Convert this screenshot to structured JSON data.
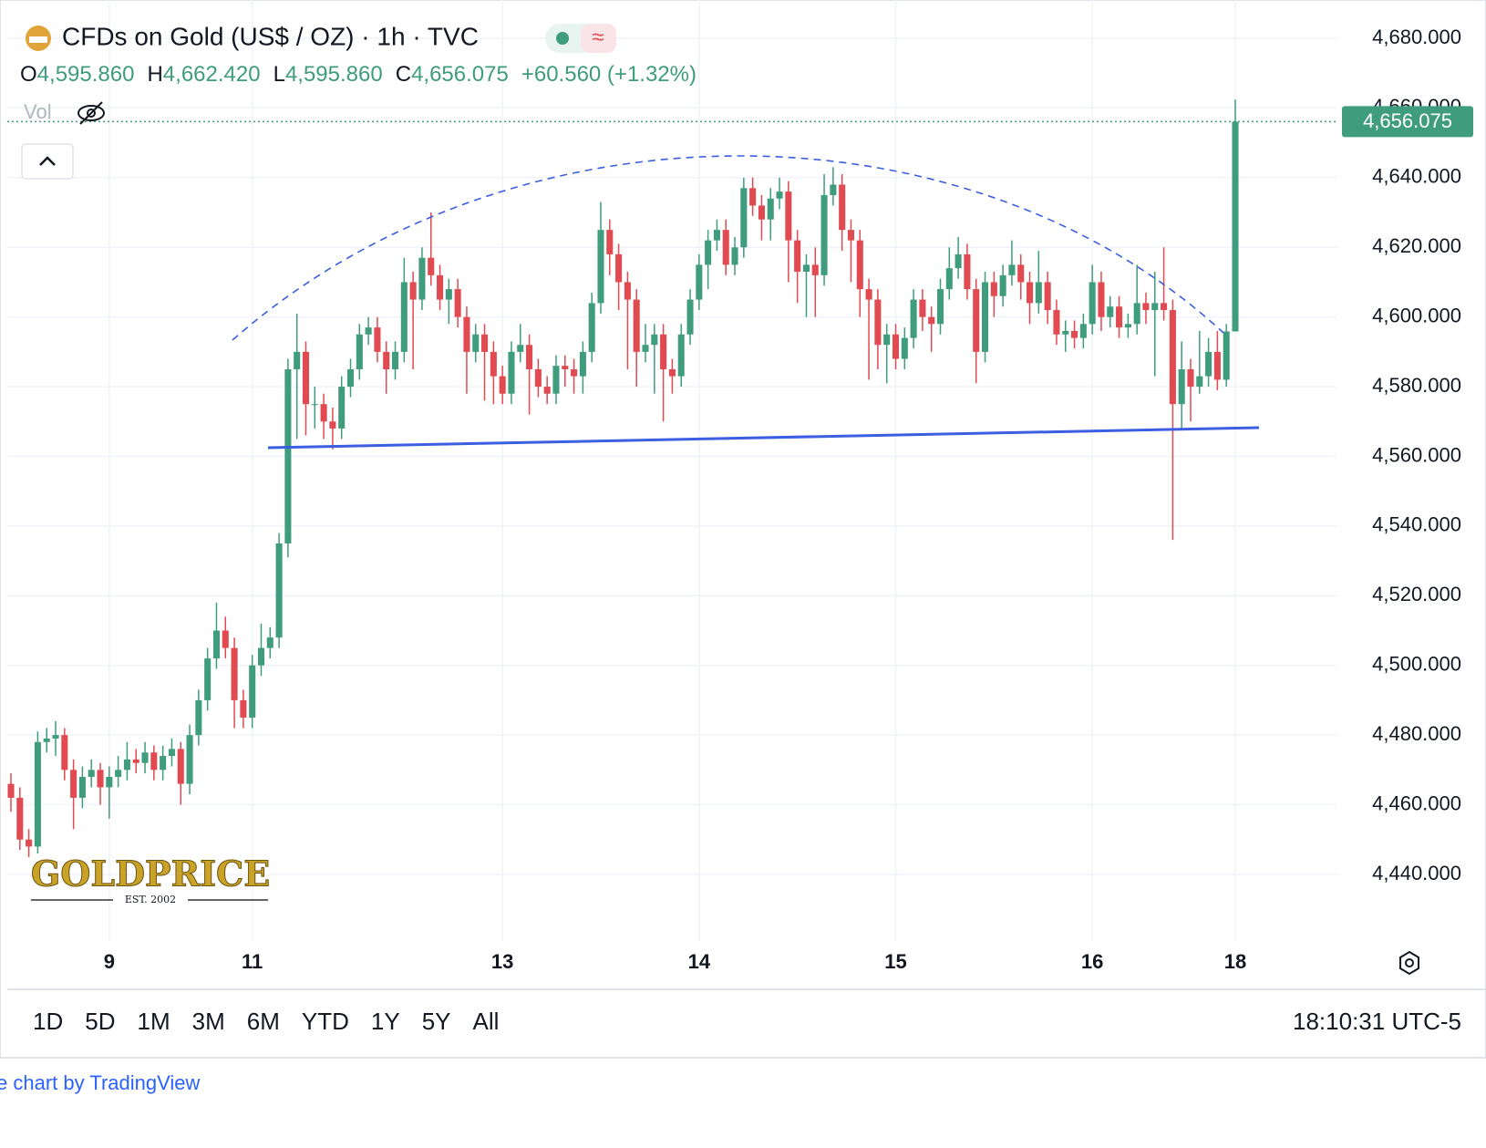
{
  "chart_data": {
    "type": "candlestick",
    "title": "CFDs on Gold (US$ / OZ) · 1h · TVC",
    "legend_values": [
      {
        "key": "O",
        "label": "4,595.860"
      },
      {
        "key": "H",
        "label": "4,662.420"
      },
      {
        "key": "L",
        "label": "4,595.860"
      },
      {
        "key": "C",
        "label": "4,656.075"
      }
    ],
    "change": "+60.560 (+1.32%)",
    "volume_label": "Vol",
    "up_color": "#3f9c7d",
    "down_color": "#e04a50",
    "categories": [
      null,
      null,
      null,
      null,
      null,
      null,
      null,
      null,
      null,
      null,
      null,
      "9",
      null,
      null,
      null,
      null,
      null,
      null,
      null,
      null,
      null,
      null,
      null,
      null,
      null,
      null,
      null,
      "11",
      null,
      null,
      null,
      null,
      null,
      null,
      null,
      null,
      null,
      null,
      null,
      null,
      null,
      null,
      null,
      null,
      null,
      null,
      null,
      null,
      null,
      null,
      null,
      null,
      null,
      null,
      null,
      "13",
      null,
      null,
      null,
      null,
      null,
      null,
      null,
      null,
      null,
      null,
      null,
      null,
      null,
      null,
      null,
      null,
      null,
      null,
      null,
      null,
      null,
      "14",
      null,
      null,
      null,
      null,
      null,
      null,
      null,
      null,
      null,
      null,
      null,
      null,
      null,
      null,
      null,
      null,
      null,
      null,
      null,
      null,
      null,
      "15",
      null,
      null,
      null,
      null,
      null,
      null,
      null,
      null,
      null,
      null,
      null,
      null,
      null,
      null,
      null,
      null,
      null,
      null,
      null,
      null,
      null,
      "16",
      null,
      null,
      null,
      null,
      null,
      null,
      null,
      null,
      null,
      null,
      null,
      null,
      null,
      null,
      null,
      "18"
    ],
    "ohlc": [
      [
        4466,
        4469,
        4458,
        4462
      ],
      [
        4462,
        4465,
        4447,
        4450
      ],
      [
        4450,
        4453,
        4445,
        4448
      ],
      [
        4448,
        4481,
        4446,
        4478
      ],
      [
        4478,
        4482,
        4475,
        4479
      ],
      [
        4479,
        4484,
        4474,
        4480
      ],
      [
        4480,
        4482,
        4467,
        4470
      ],
      [
        4470,
        4473,
        4453,
        4462
      ],
      [
        4462,
        4471,
        4459,
        4468
      ],
      [
        4468,
        4473,
        4465,
        4470
      ],
      [
        4470,
        4472,
        4460,
        4465
      ],
      [
        4465,
        4471,
        4456,
        4468
      ],
      [
        4468,
        4474,
        4465,
        4470
      ],
      [
        4470,
        4478,
        4467,
        4473
      ],
      [
        4473,
        4476,
        4469,
        4472
      ],
      [
        4472,
        4478,
        4469,
        4475
      ],
      [
        4475,
        4477,
        4467,
        4470
      ],
      [
        4470,
        4477,
        4467,
        4474
      ],
      [
        4474,
        4479,
        4471,
        4476
      ],
      [
        4476,
        4478,
        4460,
        4466
      ],
      [
        4466,
        4483,
        4463,
        4480
      ],
      [
        4480,
        4493,
        4477,
        4490
      ],
      [
        4490,
        4505,
        4487,
        4502
      ],
      [
        4502,
        4518,
        4499,
        4510
      ],
      [
        4510,
        4514,
        4502,
        4505
      ],
      [
        4505,
        4508,
        4482,
        4490
      ],
      [
        4490,
        4493,
        4482,
        4485
      ],
      [
        4485,
        4503,
        4482,
        4500
      ],
      [
        4500,
        4512,
        4497,
        4505
      ],
      [
        4505,
        4511,
        4502,
        4508
      ],
      [
        4508,
        4538,
        4505,
        4535
      ],
      [
        4535,
        4588,
        4531,
        4585
      ],
      [
        4585,
        4601,
        4565,
        4590
      ],
      [
        4590,
        4593,
        4566,
        4575
      ],
      [
        4575,
        4580,
        4568,
        4575
      ],
      [
        4575,
        4578,
        4565,
        4570
      ],
      [
        4570,
        4574,
        4562,
        4568
      ],
      [
        4568,
        4583,
        4565,
        4580
      ],
      [
        4580,
        4588,
        4577,
        4585
      ],
      [
        4585,
        4598,
        4582,
        4595
      ],
      [
        4595,
        4600,
        4592,
        4597
      ],
      [
        4597,
        4600,
        4587,
        4590
      ],
      [
        4590,
        4593,
        4578,
        4585
      ],
      [
        4585,
        4593,
        4582,
        4590
      ],
      [
        4590,
        4617,
        4587,
        4610
      ],
      [
        4610,
        4613,
        4585,
        4605
      ],
      [
        4605,
        4620,
        4602,
        4617
      ],
      [
        4617,
        4630,
        4609,
        4612
      ],
      [
        4612,
        4615,
        4602,
        4605
      ],
      [
        4605,
        4611,
        4598,
        4608
      ],
      [
        4608,
        4611,
        4597,
        4600
      ],
      [
        4600,
        4603,
        4578,
        4590
      ],
      [
        4590,
        4598,
        4587,
        4595
      ],
      [
        4595,
        4598,
        4576,
        4590
      ],
      [
        4590,
        4593,
        4575,
        4583
      ],
      [
        4583,
        4586,
        4575,
        4578
      ],
      [
        4578,
        4593,
        4575,
        4590
      ],
      [
        4590,
        4598,
        4587,
        4592
      ],
      [
        4592,
        4595,
        4572,
        4585
      ],
      [
        4585,
        4588,
        4577,
        4580
      ],
      [
        4580,
        4583,
        4575,
        4578
      ],
      [
        4578,
        4589,
        4575,
        4586
      ],
      [
        4586,
        4589,
        4580,
        4585
      ],
      [
        4585,
        4588,
        4578,
        4583
      ],
      [
        4583,
        4593,
        4578,
        4590
      ],
      [
        4590,
        4607,
        4587,
        4604
      ],
      [
        4604,
        4633,
        4601,
        4625
      ],
      [
        4625,
        4628,
        4612,
        4618
      ],
      [
        4618,
        4621,
        4602,
        4610
      ],
      [
        4610,
        4613,
        4585,
        4605
      ],
      [
        4605,
        4608,
        4580,
        4590
      ],
      [
        4590,
        4598,
        4587,
        4592
      ],
      [
        4592,
        4598,
        4578,
        4595
      ],
      [
        4595,
        4598,
        4570,
        4585
      ],
      [
        4585,
        4588,
        4578,
        4583
      ],
      [
        4583,
        4598,
        4580,
        4595
      ],
      [
        4595,
        4608,
        4592,
        4605
      ],
      [
        4605,
        4618,
        4602,
        4615
      ],
      [
        4615,
        4625,
        4608,
        4622
      ],
      [
        4622,
        4628,
        4619,
        4625
      ],
      [
        4625,
        4628,
        4612,
        4615
      ],
      [
        4615,
        4623,
        4612,
        4620
      ],
      [
        4620,
        4640,
        4617,
        4637
      ],
      [
        4637,
        4640,
        4629,
        4632
      ],
      [
        4632,
        4635,
        4622,
        4628
      ],
      [
        4628,
        4637,
        4622,
        4634
      ],
      [
        4634,
        4640,
        4631,
        4636
      ],
      [
        4636,
        4639,
        4610,
        4622
      ],
      [
        4622,
        4625,
        4604,
        4613
      ],
      [
        4613,
        4618,
        4600,
        4615
      ],
      [
        4615,
        4620,
        4600,
        4612
      ],
      [
        4612,
        4641,
        4609,
        4635
      ],
      [
        4635,
        4643,
        4632,
        4638
      ],
      [
        4638,
        4641,
        4619,
        4625
      ],
      [
        4625,
        4628,
        4610,
        4622
      ],
      [
        4622,
        4625,
        4600,
        4608
      ],
      [
        4608,
        4611,
        4582,
        4605
      ],
      [
        4605,
        4608,
        4585,
        4592
      ],
      [
        4592,
        4598,
        4581,
        4595
      ],
      [
        4595,
        4598,
        4585,
        4588
      ],
      [
        4588,
        4597,
        4585,
        4594
      ],
      [
        4594,
        4608,
        4591,
        4605
      ],
      [
        4605,
        4608,
        4596,
        4600
      ],
      [
        4600,
        4603,
        4590,
        4598
      ],
      [
        4598,
        4611,
        4595,
        4608
      ],
      [
        4608,
        4620,
        4605,
        4614
      ],
      [
        4614,
        4623,
        4611,
        4618
      ],
      [
        4618,
        4621,
        4605,
        4608
      ],
      [
        4608,
        4611,
        4581,
        4590
      ],
      [
        4590,
        4613,
        4587,
        4610
      ],
      [
        4610,
        4613,
        4600,
        4606
      ],
      [
        4606,
        4615,
        4603,
        4612
      ],
      [
        4612,
        4622,
        4609,
        4615
      ],
      [
        4615,
        4618,
        4605,
        4610
      ],
      [
        4610,
        4613,
        4598,
        4604
      ],
      [
        4604,
        4619,
        4601,
        4610
      ],
      [
        4610,
        4613,
        4598,
        4602
      ],
      [
        4602,
        4605,
        4592,
        4595
      ],
      [
        4595,
        4599,
        4590,
        4596
      ],
      [
        4596,
        4599,
        4591,
        4594
      ],
      [
        4594,
        4601,
        4591,
        4598
      ],
      [
        4598,
        4615,
        4595,
        4610
      ],
      [
        4610,
        4613,
        4596,
        4600
      ],
      [
        4600,
        4606,
        4597,
        4603
      ],
      [
        4603,
        4606,
        4594,
        4597
      ],
      [
        4597,
        4601,
        4594,
        4598
      ],
      [
        4598,
        4615,
        4595,
        4604
      ],
      [
        4604,
        4607,
        4598,
        4602
      ],
      [
        4602,
        4613,
        4583,
        4604
      ],
      [
        4604,
        4620,
        4599,
        4602
      ],
      [
        4602,
        4605,
        4536,
        4575
      ],
      [
        4575,
        4593,
        4568,
        4585
      ],
      [
        4585,
        4588,
        4570,
        4580
      ],
      [
        4580,
        4596,
        4578,
        4583
      ],
      [
        4583,
        4594,
        4580,
        4590
      ],
      [
        4590,
        4596,
        4579,
        4582
      ],
      [
        4582,
        4598,
        4580,
        4595.86
      ],
      [
        4595.86,
        4662.42,
        4595.86,
        4656.075
      ]
    ],
    "ylim": [
      4418,
      4691
    ],
    "yticks": [
      {
        "value": 4440,
        "label": "4,440.000"
      },
      {
        "value": 4460,
        "label": "4,460.000"
      },
      {
        "value": 4480,
        "label": "4,480.000"
      },
      {
        "value": 4500,
        "label": "4,500.000"
      },
      {
        "value": 4520,
        "label": "4,520.000"
      },
      {
        "value": 4540,
        "label": "4,540.000"
      },
      {
        "value": 4560,
        "label": "4,560.000"
      },
      {
        "value": 4580,
        "label": "4,580.000"
      },
      {
        "value": 4600,
        "label": "4,600.000"
      },
      {
        "value": 4620,
        "label": "4,620.000"
      },
      {
        "value": 4640,
        "label": "4,640.000"
      },
      {
        "value": 4660,
        "label": "4,660.000"
      },
      {
        "value": 4680,
        "label": "4,680.000"
      }
    ],
    "last_price": 4656.075,
    "grid": true,
    "ranges": [
      "1D",
      "5D",
      "1M",
      "3M",
      "6M",
      "YTD",
      "1Y",
      "5Y",
      "All"
    ],
    "clock": "18:10:31 UTC-5",
    "logo": "GOLDPRICE",
    "logo_sub": "EST. 2002",
    "attribution": "e chart by TradingView"
  }
}
